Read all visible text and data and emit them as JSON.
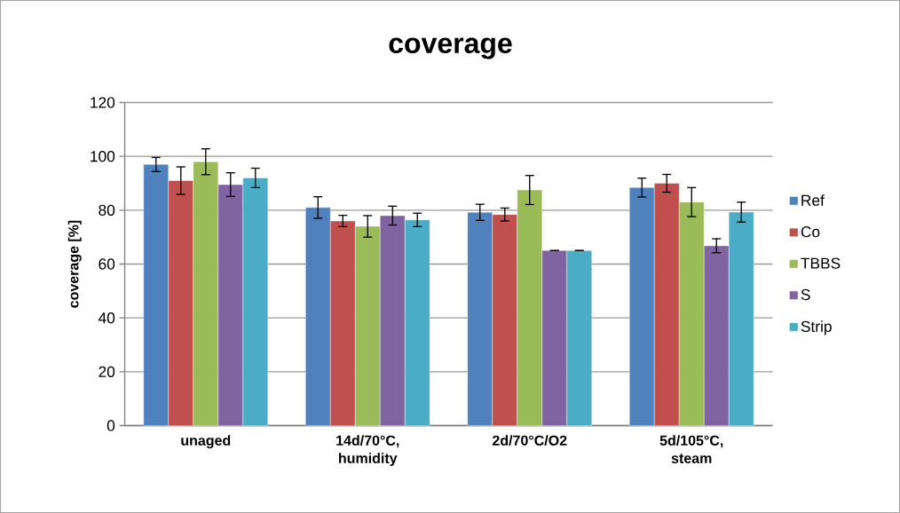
{
  "chart_data": {
    "type": "bar",
    "title": "coverage",
    "ylabel": "coverage [%]",
    "categories": [
      "unaged",
      "14d/70°C, humidity",
      "2d/70°C/O2",
      "5d/105°C, steam"
    ],
    "series": [
      {
        "name": "Ref",
        "color": "#4f81bd",
        "values": [
          97,
          81,
          79.2,
          88.4
        ],
        "errors": [
          2.6,
          4,
          3,
          3.5
        ]
      },
      {
        "name": "Co",
        "color": "#c0504d",
        "values": [
          91,
          76,
          78.4,
          90
        ],
        "errors": [
          5.1,
          2.1,
          2.4,
          3.3
        ]
      },
      {
        "name": "TBBS",
        "color": "#9bbb59",
        "values": [
          98,
          74,
          87.5,
          83
        ],
        "errors": [
          4.8,
          4,
          5.4,
          5.4
        ]
      },
      {
        "name": "S",
        "color": "#8064a2",
        "values": [
          89.5,
          78,
          65,
          66.8
        ],
        "errors": [
          4.4,
          3.5,
          0,
          2.6
        ]
      },
      {
        "name": "Strip",
        "color": "#4bacc6",
        "values": [
          92,
          76.4,
          65,
          79.3
        ],
        "errors": [
          3.6,
          2.5,
          0,
          3.7
        ]
      }
    ],
    "ylim": [
      0,
      120
    ],
    "yticks": [
      0,
      20,
      40,
      60,
      80,
      100,
      120
    ],
    "grid": "y",
    "legend": "right"
  }
}
